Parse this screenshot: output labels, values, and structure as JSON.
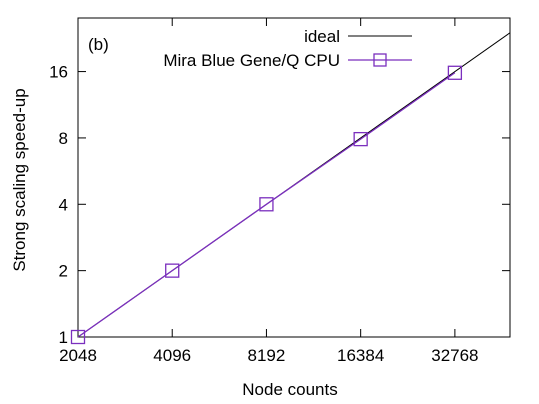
{
  "chart_data": {
    "type": "line",
    "panel_label": "(b)",
    "xlabel": "Node counts",
    "ylabel": "Strong scaling speed-up",
    "x_scale": "log2",
    "y_scale": "log2",
    "xlim": [
      2048,
      49152
    ],
    "ylim": [
      1,
      28
    ],
    "x_ticks": [
      2048,
      4096,
      8192,
      16384,
      32768
    ],
    "x_tick_labels": [
      "2048",
      "4096",
      "8192",
      "16384",
      "32768"
    ],
    "y_ticks": [
      1,
      2,
      4,
      8,
      16
    ],
    "y_tick_labels": [
      "1",
      "2",
      "4",
      "8",
      "16"
    ],
    "grid": false,
    "legend_position": "top-right",
    "series": [
      {
        "name": "ideal",
        "style": "line",
        "color": "#000000",
        "x": [
          2048,
          49152
        ],
        "y": [
          1,
          24
        ]
      },
      {
        "name": "Mira Blue Gene/Q CPU",
        "style": "line-square-markers",
        "color": "#7b2fbe",
        "x": [
          2048,
          4096,
          8192,
          16384,
          32768
        ],
        "y": [
          1,
          2,
          4,
          7.9,
          15.8
        ]
      }
    ]
  }
}
